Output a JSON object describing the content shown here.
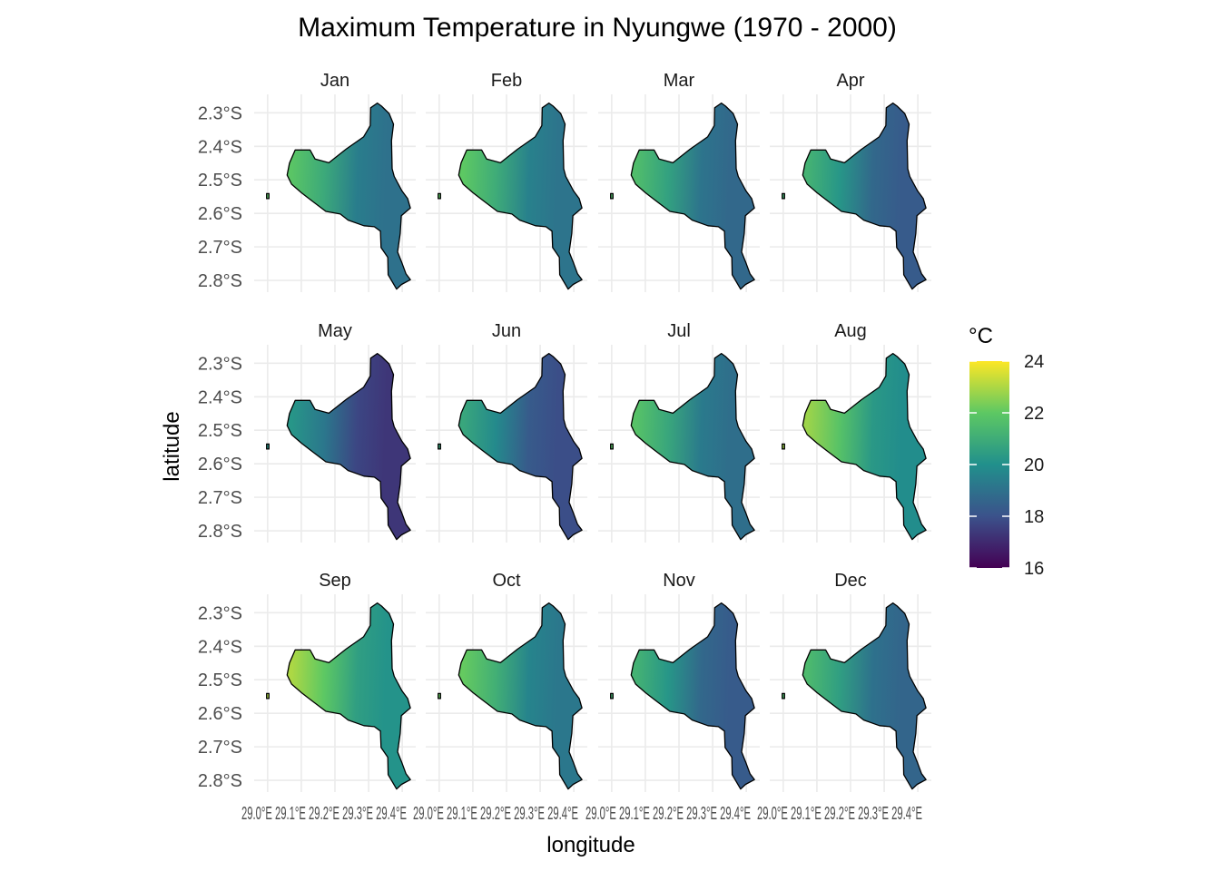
{
  "chart_data": {
    "type": "heatmap",
    "title": "Maximum Temperature in Nyungwe (1970 - 2000)",
    "xlabel": "longitude",
    "ylabel": "latitude",
    "panels": [
      "Jan",
      "Feb",
      "Mar",
      "Apr",
      "May",
      "Jun",
      "Jul",
      "Aug",
      "Sep",
      "Oct",
      "Nov",
      "Dec"
    ],
    "y_ticks": [
      "2.3°S",
      "2.4°S",
      "2.5°S",
      "2.6°S",
      "2.7°S",
      "2.8°S"
    ],
    "y_tick_values": [
      -2.3,
      -2.4,
      -2.5,
      -2.6,
      -2.7,
      -2.8
    ],
    "x_ticks": [
      "29.0°E",
      "29.1°E",
      "29.2°E",
      "29.3°E",
      "29.4°E"
    ],
    "x_tick_values": [
      29.0,
      29.1,
      29.2,
      29.3,
      29.4
    ],
    "x_tick_label_text": [
      "29.0°E 29.1°E 29.2°E 29.3°E 29.4°E",
      "29.0°E 29.1°E 29.2°E 29.3°E 29.4°E",
      "29.0°E 29.1°E 29.2°E 29.3°E 29.4°E",
      "29.0°E 29.1°E 29.2°E 29.3°E 29.4°E"
    ],
    "xlim": [
      28.96,
      29.44
    ],
    "ylim": [
      -2.835,
      -2.245
    ],
    "legend": {
      "title": "°C",
      "range": [
        16,
        24
      ],
      "ticks": [
        24,
        22,
        20,
        18,
        16
      ],
      "colors": [
        "#440154",
        "#3b528b",
        "#21908c",
        "#5dc863",
        "#fde725"
      ],
      "placement": "right"
    },
    "grid": true,
    "approx_mean_max_temp_c": {
      "Jan": 20.3,
      "Feb": 20.4,
      "Mar": 20.0,
      "Apr": 19.6,
      "May": 18.6,
      "Jun": 19.2,
      "Jul": 20.2,
      "Aug": 21.2,
      "Sep": 21.4,
      "Oct": 20.5,
      "Nov": 19.6,
      "Dec": 19.9
    },
    "outline_lonlat": [
      [
        28.997,
        -2.541
      ],
      [
        28.997,
        -2.556
      ],
      [
        29.004,
        -2.556
      ],
      [
        29.004,
        -2.541
      ],
      [
        29.065,
        -2.45
      ],
      [
        29.082,
        -2.411
      ],
      [
        29.126,
        -2.411
      ],
      [
        29.141,
        -2.438
      ],
      [
        29.182,
        -2.449
      ],
      [
        29.232,
        -2.409
      ],
      [
        29.285,
        -2.372
      ],
      [
        29.305,
        -2.338
      ],
      [
        29.306,
        -2.285
      ],
      [
        29.326,
        -2.271
      ],
      [
        29.338,
        -2.28
      ],
      [
        29.361,
        -2.302
      ],
      [
        29.374,
        -2.334
      ],
      [
        29.368,
        -2.383
      ],
      [
        29.37,
        -2.467
      ],
      [
        29.376,
        -2.49
      ],
      [
        29.399,
        -2.533
      ],
      [
        29.416,
        -2.556
      ],
      [
        29.424,
        -2.584
      ],
      [
        29.397,
        -2.607
      ],
      [
        29.394,
        -2.66
      ],
      [
        29.386,
        -2.715
      ],
      [
        29.398,
        -2.745
      ],
      [
        29.411,
        -2.78
      ],
      [
        29.424,
        -2.798
      ],
      [
        29.398,
        -2.812
      ],
      [
        29.383,
        -2.826
      ],
      [
        29.358,
        -2.783
      ],
      [
        29.357,
        -2.731
      ],
      [
        29.337,
        -2.702
      ],
      [
        29.335,
        -2.653
      ],
      [
        29.317,
        -2.64
      ],
      [
        29.286,
        -2.637
      ],
      [
        29.239,
        -2.62
      ],
      [
        29.216,
        -2.602
      ],
      [
        29.173,
        -2.594
      ],
      [
        29.132,
        -2.563
      ],
      [
        29.101,
        -2.539
      ],
      [
        29.071,
        -2.513
      ],
      [
        29.058,
        -2.486
      ]
    ],
    "gradient_axis_lonlat": [
      [
        29.07,
        -2.49
      ],
      [
        29.35,
        -2.5
      ]
    ]
  }
}
